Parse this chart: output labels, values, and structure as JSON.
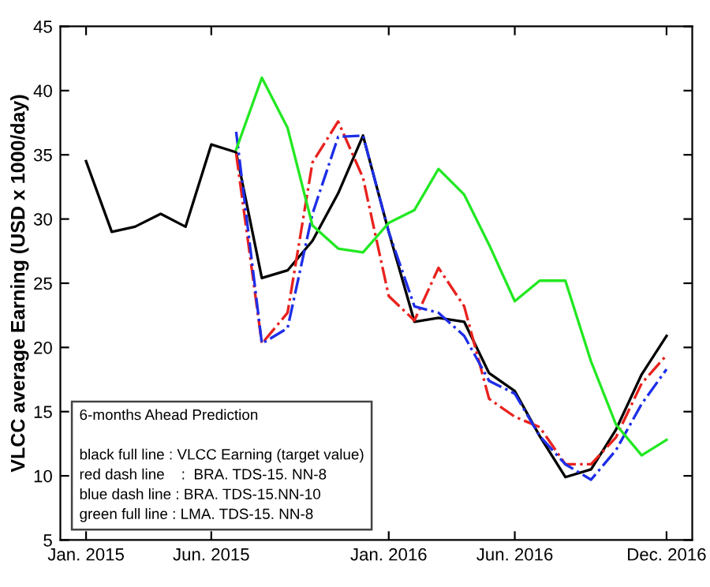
{
  "chart_data": {
    "type": "line",
    "ylabel": "VLCC average Earning (USD x 1000/day)",
    "xlim": [
      "2014-12",
      "2017-01"
    ],
    "xticks": [
      {
        "value": "2015-01",
        "label": "Jan. 2015"
      },
      {
        "value": "2015-06",
        "label": "Jun. 2015"
      },
      {
        "value": "2016-01",
        "label": "Jan. 2016"
      },
      {
        "value": "2016-06",
        "label": "Jun. 2016"
      },
      {
        "value": "2016-12",
        "label": "Dec. 2016"
      }
    ],
    "ylim": [
      5,
      45
    ],
    "yticks": [
      5,
      10,
      15,
      20,
      25,
      30,
      35,
      40,
      45
    ],
    "grid": false,
    "legend": false,
    "marker": "none",
    "series": [
      {
        "color": "#000000",
        "line_style": "solid",
        "x": [
          "2015-01",
          "2015-02",
          "2015-03",
          "2015-04",
          "2015-05",
          "2015-06",
          "2015-07",
          "2015-08",
          "2015-09",
          "2015-10",
          "2015-11",
          "2015-12",
          "2016-01",
          "2016-02",
          "2016-03",
          "2016-04",
          "2016-05",
          "2016-06",
          "2016-07",
          "2016-08",
          "2016-09",
          "2016-10",
          "2016-11",
          "2016-12"
        ],
        "values": [
          34.5,
          29.0,
          29.4,
          30.4,
          29.4,
          35.8,
          35.2,
          25.4,
          26.0,
          28.3,
          32.0,
          36.5,
          29.0,
          22.0,
          22.3,
          22.0,
          18.0,
          16.6,
          13.1,
          9.9,
          10.5,
          13.6,
          17.9,
          20.9
        ]
      },
      {
        "color": "#e8221e",
        "line_style": "dashed",
        "x": [
          "2015-07",
          "2015-08",
          "2015-09",
          "2015-10",
          "2015-11",
          "2015-12",
          "2016-01",
          "2016-02",
          "2016-03",
          "2016-04",
          "2016-05",
          "2016-06",
          "2016-07",
          "2016-08",
          "2016-09",
          "2016-10",
          "2016-11",
          "2016-12"
        ],
        "values": [
          35.1,
          20.3,
          22.7,
          34.4,
          37.6,
          33.2,
          24.0,
          22.1,
          26.2,
          23.2,
          16.0,
          14.6,
          13.8,
          10.9,
          10.9,
          13.0,
          17.2,
          19.4
        ]
      },
      {
        "color": "#1e2ee8",
        "line_style": "dashed",
        "x": [
          "2015-07",
          "2015-08",
          "2015-09",
          "2015-10",
          "2015-11",
          "2015-12",
          "2016-01",
          "2016-02",
          "2016-03",
          "2016-04",
          "2016-05",
          "2016-06",
          "2016-07",
          "2016-08",
          "2016-09",
          "2016-10",
          "2016-11",
          "2016-12"
        ],
        "values": [
          36.8,
          20.3,
          21.5,
          30.4,
          36.4,
          36.5,
          29.0,
          23.2,
          22.7,
          20.9,
          17.4,
          16.4,
          13.1,
          10.9,
          9.7,
          12.0,
          15.6,
          18.3
        ]
      },
      {
        "color": "#22e822",
        "line_style": "solid",
        "x": [
          "2015-07",
          "2015-08",
          "2015-09",
          "2015-10",
          "2015-11",
          "2015-12",
          "2016-01",
          "2016-02",
          "2016-03",
          "2016-04",
          "2016-05",
          "2016-06",
          "2016-07",
          "2016-08",
          "2016-09",
          "2016-10",
          "2016-11",
          "2016-12"
        ],
        "values": [
          35.4,
          41.0,
          37.1,
          29.5,
          27.7,
          27.4,
          29.7,
          30.7,
          33.9,
          31.9,
          28.0,
          23.6,
          25.2,
          25.2,
          18.9,
          14.0,
          11.6,
          12.8
        ]
      }
    ],
    "annotations": [
      "6-months Ahead Prediction",
      "black full line : VLCC Earning (target value)",
      "red dash line    :  BRA. TDS-15. NN-8",
      "blue dash line : BRA. TDS-15.NN-10",
      "green full line : LMA. TDS-15. NN-8"
    ]
  }
}
